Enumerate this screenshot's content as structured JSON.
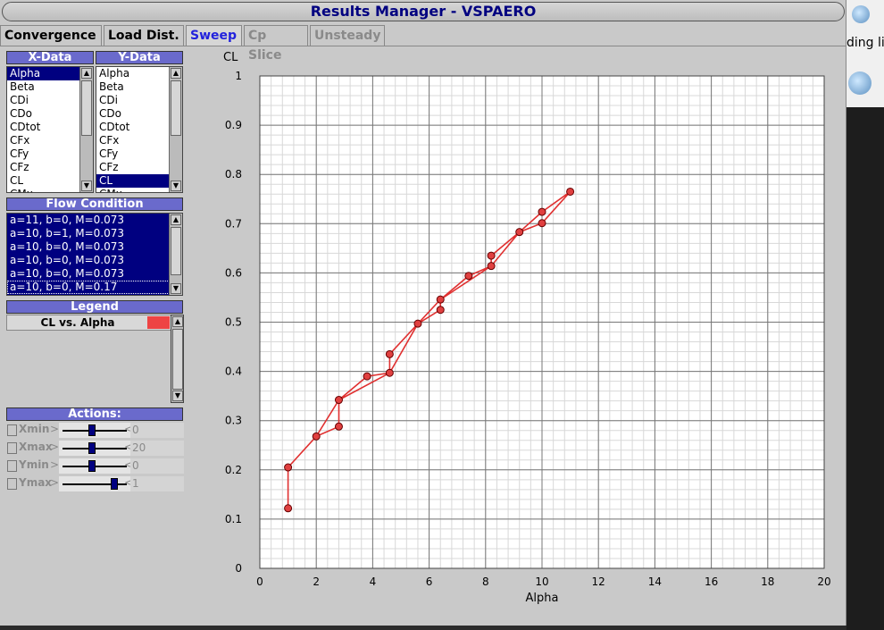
{
  "window": {
    "title": "Results Manager - VSPAERO"
  },
  "tabs": [
    {
      "label": "Convergence",
      "state": "normal"
    },
    {
      "label": "Load Dist.",
      "state": "normal"
    },
    {
      "label": "Sweep",
      "state": "active"
    },
    {
      "label": "Cp Slice",
      "state": "disabled"
    },
    {
      "label": "Unsteady",
      "state": "disabled"
    }
  ],
  "xdata": {
    "header": "X-Data",
    "items": [
      "Alpha",
      "Beta",
      "CDi",
      "CDo",
      "CDtot",
      "CFx",
      "CFy",
      "CFz",
      "CL",
      "CMx"
    ],
    "selected": "Alpha"
  },
  "ydata": {
    "header": "Y-Data",
    "items": [
      "Alpha",
      "Beta",
      "CDi",
      "CDo",
      "CDtot",
      "CFx",
      "CFy",
      "CFz",
      "CL",
      "CMx"
    ],
    "selected": "CL"
  },
  "flow": {
    "header": "Flow Condition",
    "items": [
      "a=11, b=0, M=0.073",
      "a=10, b=1, M=0.073",
      "a=10, b=0, M=0.073",
      "a=10, b=0, M=0.073",
      "a=10, b=0, M=0.073",
      "a=10, b=0, M=0.17"
    ]
  },
  "legend": {
    "header": "Legend",
    "entry": "CL vs. Alpha",
    "swatch": "#ee4444"
  },
  "actions": {
    "header": "Actions:",
    "rows": [
      {
        "label": "Xmin",
        "value": "0",
        "knob": 0.45
      },
      {
        "label": "Xmax",
        "value": "20",
        "knob": 0.45
      },
      {
        "label": "Ymin",
        "value": "0",
        "knob": 0.45
      },
      {
        "label": "Ymax",
        "value": "1",
        "knob": 0.85
      }
    ]
  },
  "desktop": {
    "snippet": "ding li"
  },
  "chart_data": {
    "type": "line",
    "xlabel": "Alpha",
    "ylabel": "CL",
    "xlim": [
      0,
      20
    ],
    "ylim": [
      0,
      1
    ],
    "xticks": [
      "0",
      "2",
      "4",
      "6",
      "8",
      "10",
      "12",
      "14",
      "16",
      "18",
      "20"
    ],
    "yticks": [
      "0",
      "0.1",
      "0.2",
      "0.3",
      "0.4",
      "0.5",
      "0.6",
      "0.7",
      "0.8",
      "0.9",
      "1"
    ],
    "grid": true,
    "series": [
      {
        "name": "CL vs. Alpha",
        "color": "#e03030",
        "x": [
          1,
          1,
          2,
          2.8,
          2.8,
          3.8,
          4.6,
          4.6,
          5.6,
          6.4,
          6.4,
          7.4,
          8.2,
          8.2,
          9.2,
          10,
          10,
          11
        ],
        "y": [
          0.122,
          0.205,
          0.268,
          0.288,
          0.342,
          0.39,
          0.397,
          0.435,
          0.497,
          0.525,
          0.546,
          0.594,
          0.614,
          0.635,
          0.683,
          0.701,
          0.724,
          0.765
        ]
      }
    ],
    "order": [
      0,
      1,
      2,
      3,
      4,
      5,
      6,
      7,
      8,
      9,
      10,
      11,
      12,
      13,
      14,
      15,
      17,
      16,
      14,
      12,
      10,
      8,
      6,
      4,
      2,
      1
    ]
  }
}
